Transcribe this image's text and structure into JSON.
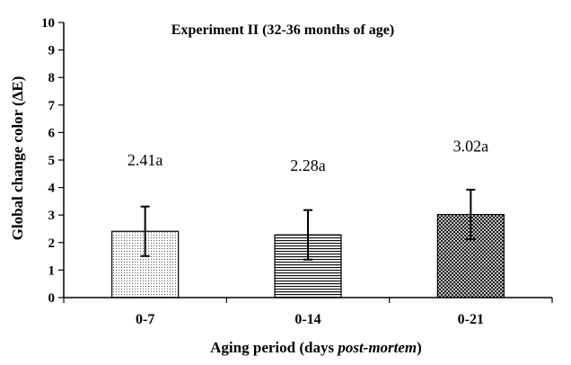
{
  "chart_data": {
    "type": "bar",
    "title": "Experiment II (32-36 months of age)",
    "ylabel": "Global change color (ΔE)",
    "xlabel": {
      "prefix": "Aging period (days ",
      "italic": "post-mortem",
      "suffix": ")"
    },
    "ylim": [
      0,
      10
    ],
    "yticks": [
      "0",
      "1",
      "2",
      "3",
      "4",
      "5",
      "6",
      "7",
      "8",
      "9",
      "10"
    ],
    "categories": [
      "0-7",
      "0-14",
      "0-21"
    ],
    "values": [
      2.41,
      2.28,
      3.02
    ],
    "error": [
      0.9,
      0.9,
      0.9
    ],
    "data_labels": [
      "2.41a",
      "2.28a",
      "3.02a"
    ],
    "label_values": [
      5.0,
      4.8,
      5.5
    ],
    "bar_patterns": [
      "dots",
      "horizontal-lines",
      "crosshatch"
    ],
    "grid": false,
    "legend": "none",
    "colors": {
      "axis": "#000000",
      "bar_fill": "#ffffff",
      "pattern": "#000000"
    }
  }
}
